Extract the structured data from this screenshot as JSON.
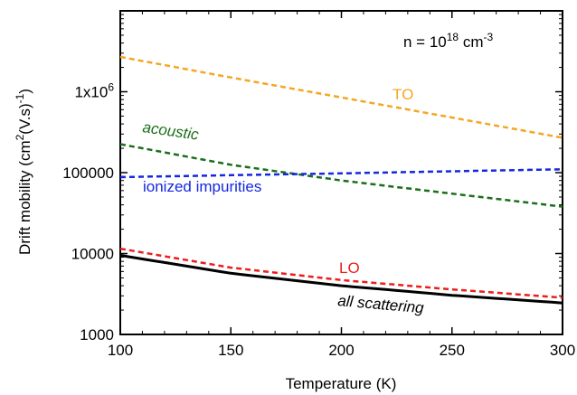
{
  "chart_data": {
    "type": "line",
    "xlabel": "Temperature (K)",
    "ylabel": "Drift mobility (cm²(V.s)⁻¹)",
    "annotation": "n = 10¹⁸ cm⁻³",
    "xlim": [
      100,
      300
    ],
    "ylim": [
      1000,
      10000000
    ],
    "yscale": "log",
    "x_ticks": [
      100,
      150,
      200,
      250,
      300
    ],
    "x_tick_labels": [
      "100",
      "150",
      "200",
      "250",
      "300"
    ],
    "y_ticks": [
      1000,
      10000,
      100000,
      1000000
    ],
    "y_tick_labels": [
      "1000",
      "10000",
      "100000",
      "1x10⁶"
    ],
    "grid": false,
    "x": [
      100,
      150,
      200,
      250,
      300
    ],
    "series": [
      {
        "name": "TO",
        "color": "#f5a623",
        "dash": "dashed",
        "values": [
          2700000,
          1500000,
          850000,
          480000,
          270000
        ]
      },
      {
        "name": "acoustic",
        "color": "#1a6e1a",
        "dash": "dashed",
        "values": [
          225000,
          125000,
          80000,
          55000,
          38000
        ]
      },
      {
        "name": "ionized impurities",
        "color": "#1428e0",
        "dash": "dashed",
        "values": [
          88000,
          93000,
          98000,
          104000,
          110000
        ]
      },
      {
        "name": "LO",
        "color": "#ee1c1c",
        "dash": "dashed",
        "values": [
          11500,
          6700,
          4700,
          3600,
          2850
        ]
      },
      {
        "name": "all scattering",
        "color": "#000000",
        "dash": "solid",
        "values": [
          9500,
          5700,
          4000,
          3050,
          2450
        ]
      }
    ]
  }
}
